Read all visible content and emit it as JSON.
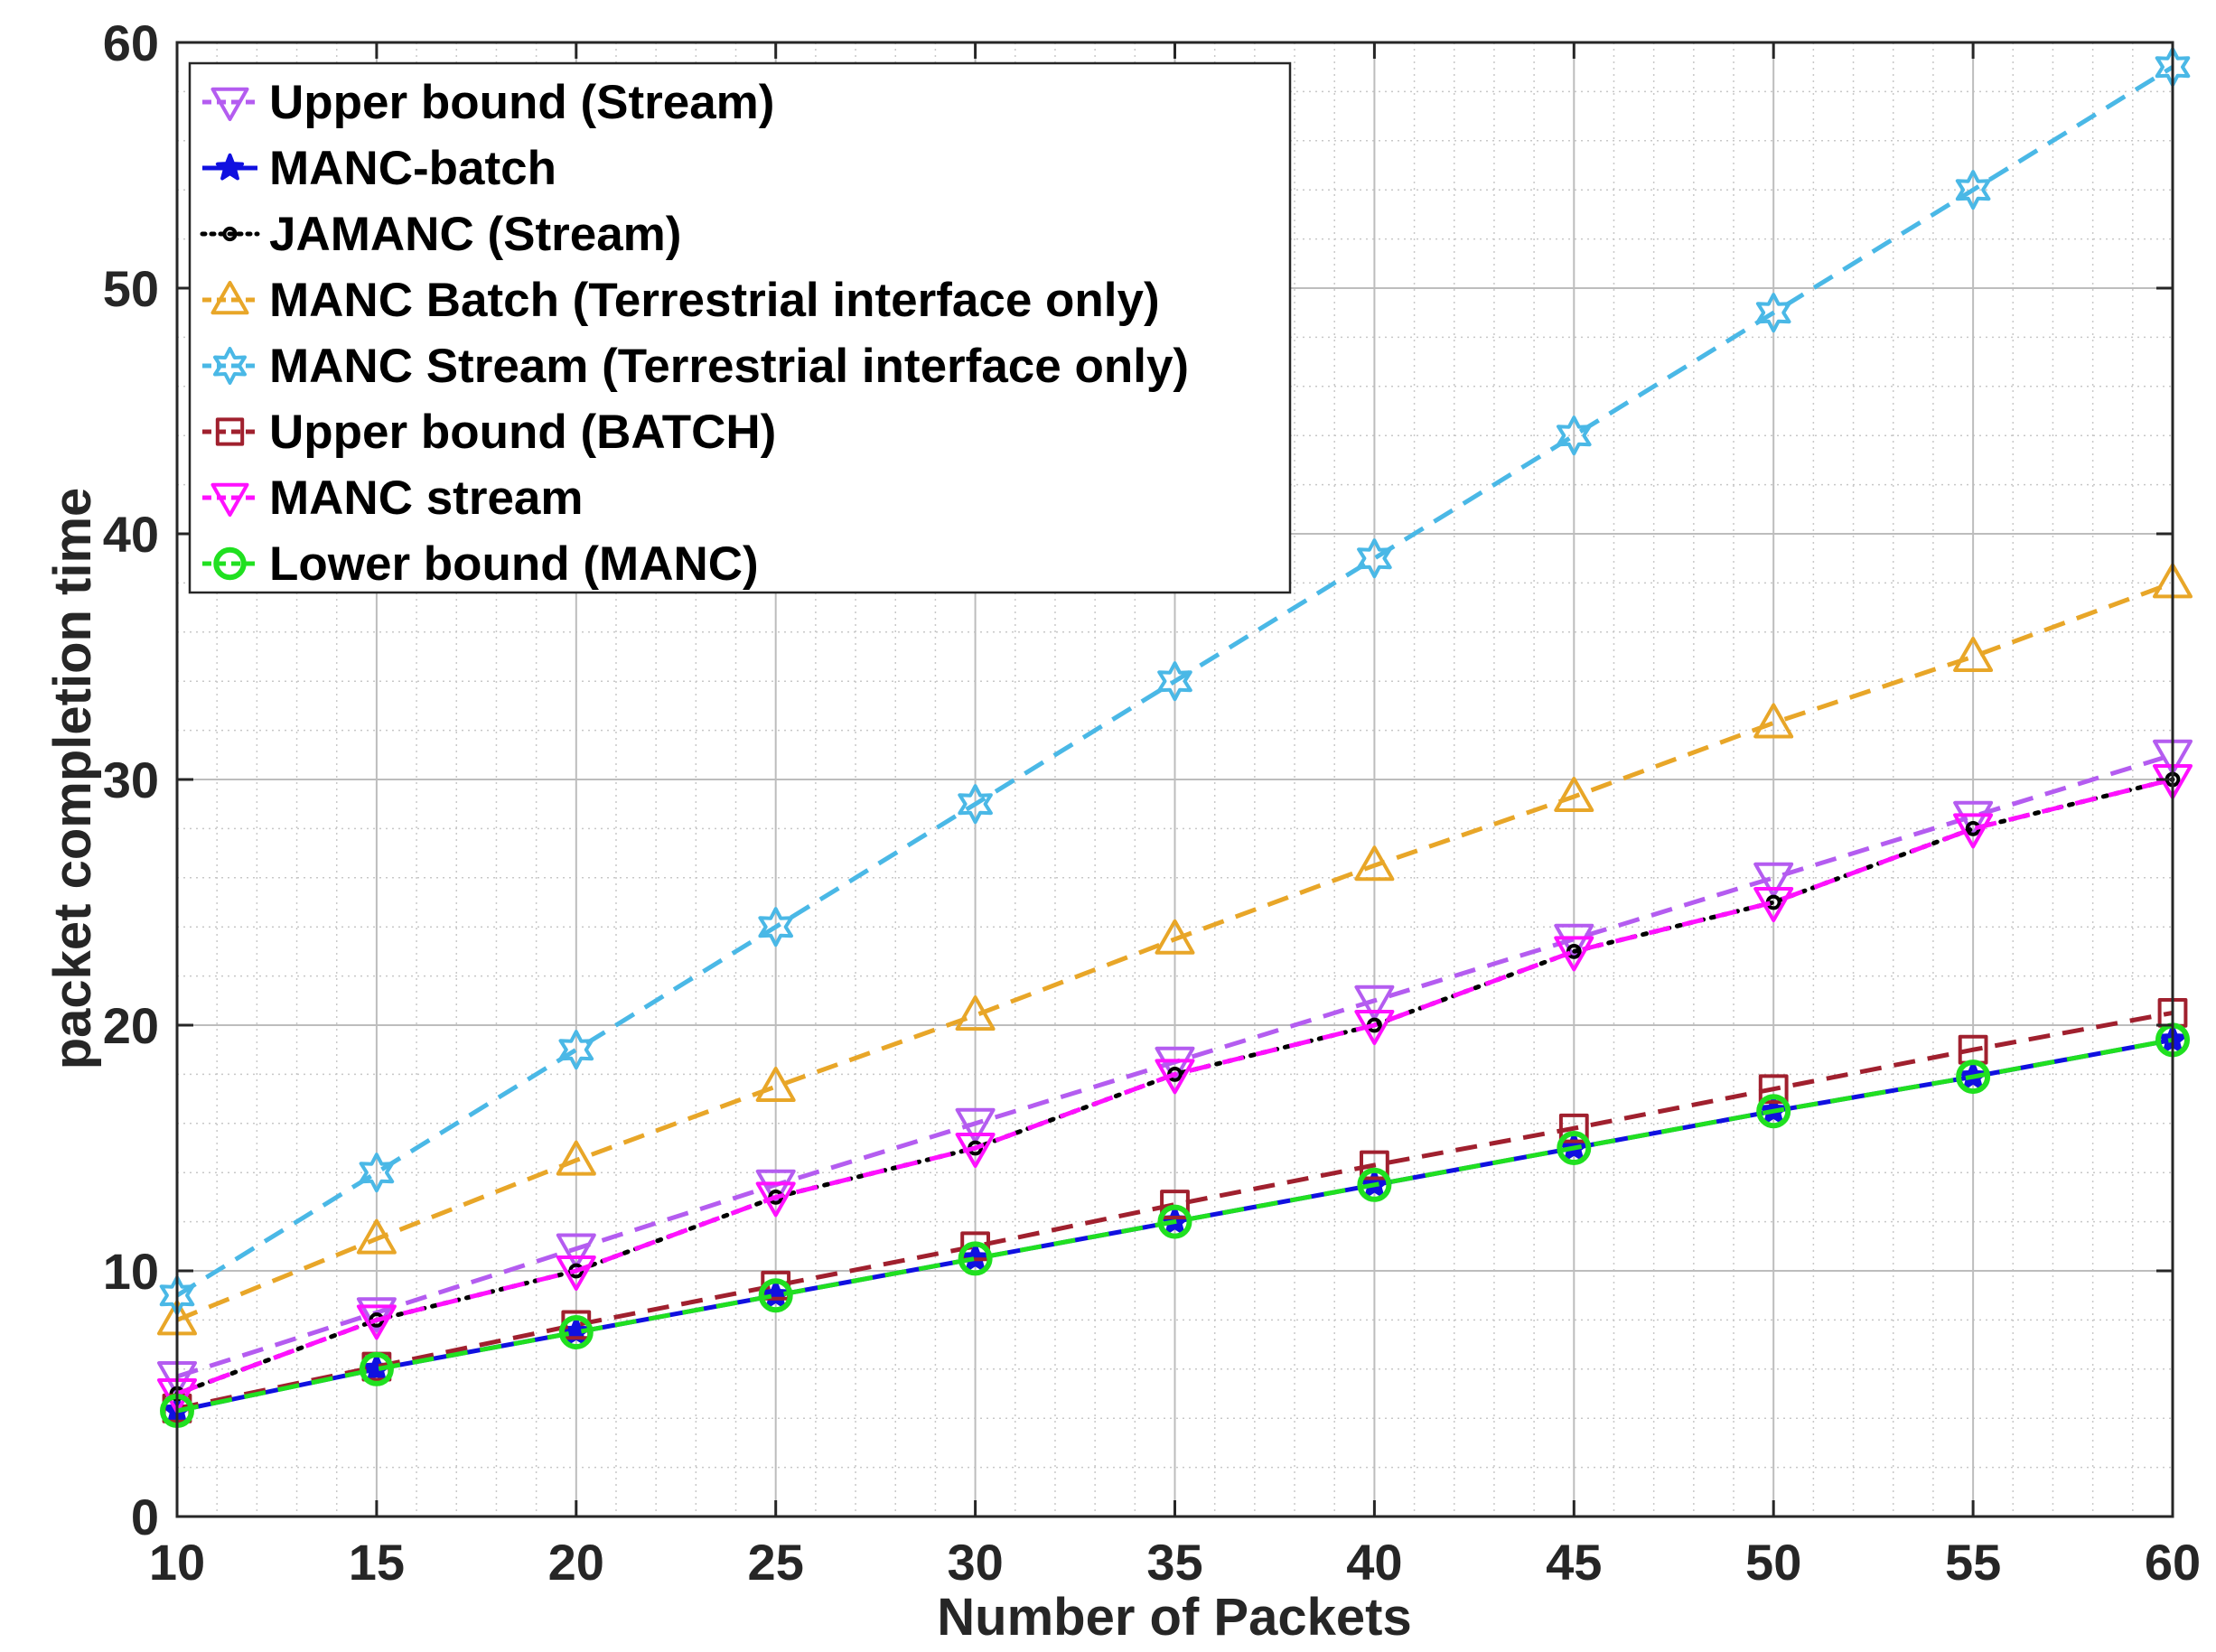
{
  "chart_data": {
    "type": "line",
    "title": "",
    "xlabel": "Number of Packets",
    "ylabel": "packet completion time",
    "xlim": [
      10,
      60
    ],
    "ylim": [
      0,
      60
    ],
    "xticks": [
      10,
      15,
      20,
      25,
      30,
      35,
      40,
      45,
      50,
      55,
      60
    ],
    "yticks": [
      0,
      10,
      20,
      30,
      40,
      50,
      60
    ],
    "grid": true,
    "minor_grid": true,
    "legend_position": "top-left",
    "x": [
      10,
      15,
      20,
      25,
      30,
      35,
      40,
      45,
      50,
      55,
      60
    ],
    "series": [
      {
        "name": "Upper bound (Stream)",
        "color": "#b45cf0",
        "marker": "triangle-down",
        "line": "dashed",
        "values": [
          5.7,
          8.3,
          10.9,
          13.5,
          16.0,
          18.5,
          21.0,
          23.5,
          26.0,
          28.5,
          31.0
        ]
      },
      {
        "name": "MANC-batch",
        "color": "#1010e0",
        "marker": "star",
        "line": "solid",
        "values": [
          4.3,
          6.0,
          7.5,
          9.0,
          10.5,
          12.0,
          13.5,
          15.0,
          16.5,
          17.9,
          19.4
        ]
      },
      {
        "name": "JAMANC (Stream)",
        "color": "#000000",
        "marker": "circle-small",
        "line": "dotted",
        "values": [
          5.0,
          8.0,
          10.0,
          13.0,
          15.0,
          18.0,
          20.0,
          23.0,
          25.0,
          28.0,
          30.0
        ]
      },
      {
        "name": "MANC Batch (Terrestrial interface only)",
        "color": "#e8a628",
        "marker": "triangle-up",
        "line": "dashed",
        "values": [
          8.0,
          11.3,
          14.5,
          17.5,
          20.4,
          23.5,
          26.5,
          29.3,
          32.3,
          35.0,
          38.0
        ]
      },
      {
        "name": "MANC Stream (Terrestrial interface only)",
        "color": "#4ab8e6",
        "marker": "hexagram",
        "line": "dashed",
        "values": [
          9.0,
          14.0,
          19.0,
          24.0,
          29.0,
          34.0,
          39.0,
          44.0,
          49.0,
          54.0,
          59.0
        ]
      },
      {
        "name": "Upper bound (BATCH)",
        "color": "#a0202e",
        "marker": "square",
        "line": "dashed",
        "values": [
          4.4,
          6.1,
          7.8,
          9.4,
          11.0,
          12.7,
          14.3,
          15.8,
          17.4,
          19.0,
          20.5
        ]
      },
      {
        "name": "MANC stream",
        "color": "#ff10ff",
        "marker": "triangle-down",
        "line": "dashed",
        "values": [
          5.0,
          8.0,
          10.0,
          13.0,
          15.0,
          18.0,
          20.0,
          23.0,
          25.0,
          28.0,
          30.0
        ]
      },
      {
        "name": "Lower bound (MANC)",
        "color": "#20e020",
        "marker": "circle",
        "line": "dashed",
        "values": [
          4.3,
          6.0,
          7.5,
          9.0,
          10.5,
          12.0,
          13.5,
          15.0,
          16.5,
          17.9,
          19.4
        ]
      }
    ]
  }
}
